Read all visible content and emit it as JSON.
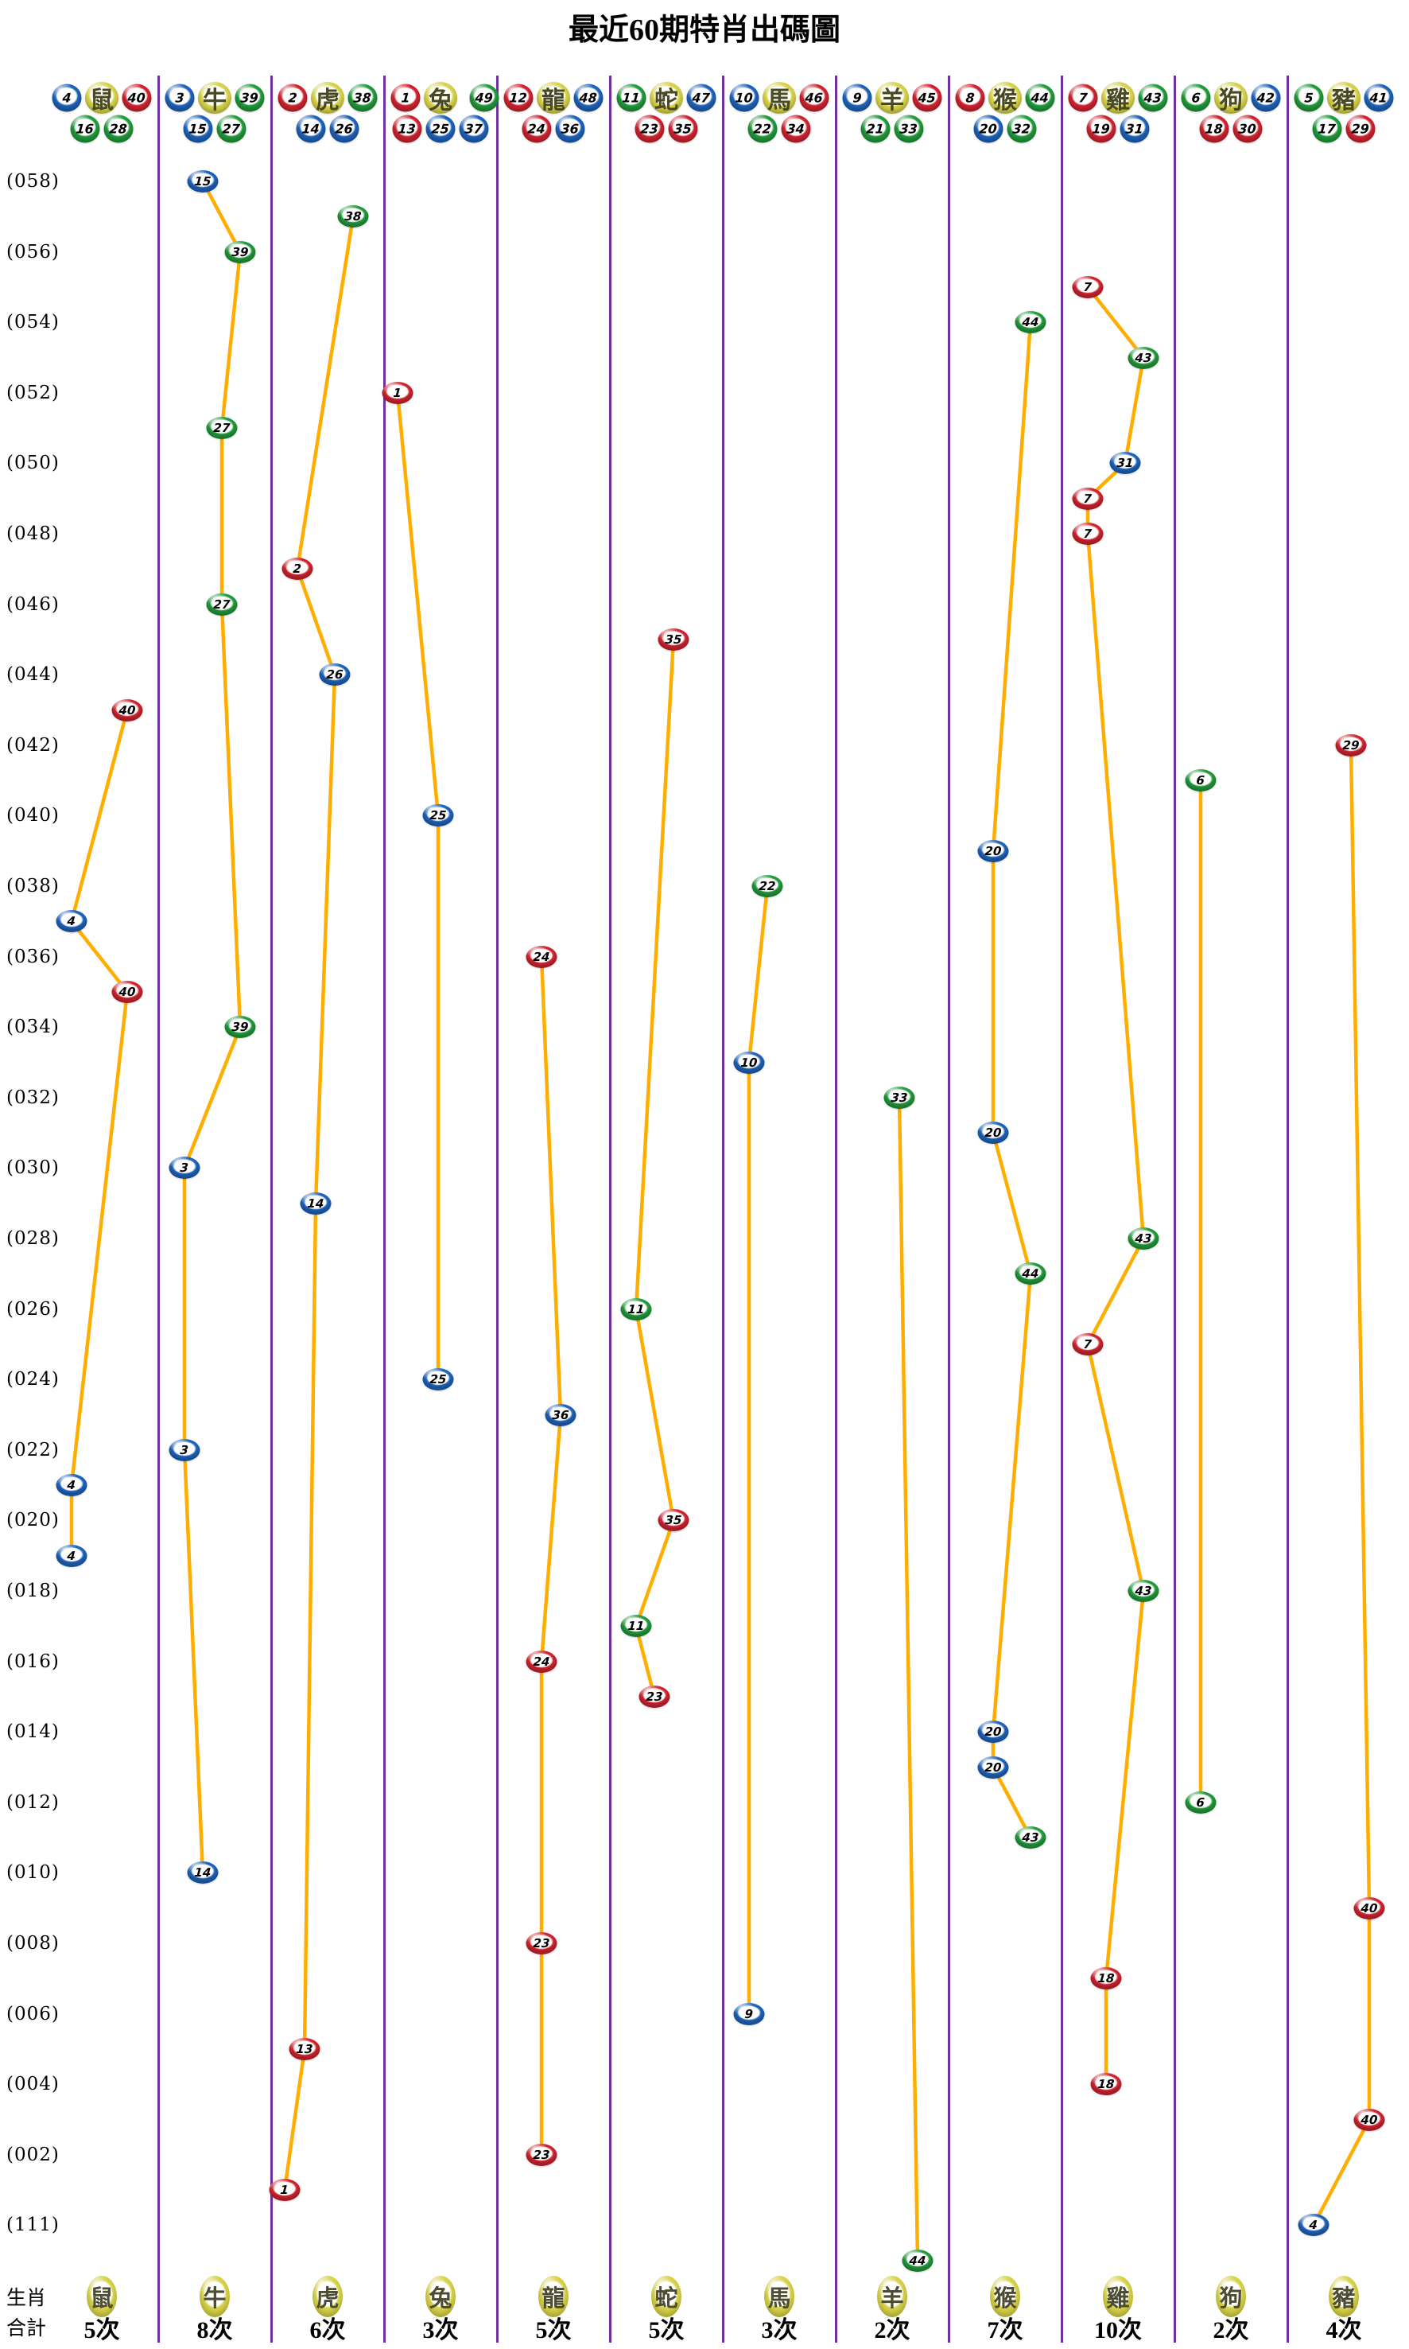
{
  "title": "最近60期特肖出碼圖",
  "legend": {
    "zodiac_row_label": "生肖",
    "total_row_label": "合計"
  },
  "colors": {
    "red_ball": "#d2232f",
    "blue_ball": "#1e63bc",
    "green_ball": "#219b3b",
    "zodiac_yellow": "#d8d348",
    "line_orange": "#ffae00",
    "separator_purple": "#7030a0"
  },
  "ball_color_groups": {
    "red": [
      1,
      2,
      7,
      8,
      12,
      13,
      18,
      19,
      23,
      24,
      29,
      30,
      34,
      35,
      40,
      45,
      46
    ],
    "blue": [
      3,
      4,
      9,
      10,
      14,
      15,
      20,
      25,
      26,
      31,
      36,
      37,
      41,
      42,
      47,
      48
    ],
    "green": [
      5,
      6,
      11,
      16,
      17,
      21,
      22,
      27,
      28,
      32,
      33,
      38,
      39,
      43,
      44,
      49
    ]
  },
  "chart_data": {
    "type": "line",
    "orientation": "columns are zodiac series, rows are draw periods (top = most recent)",
    "y_axis_labels": [
      "(058)",
      "(056)",
      "(054)",
      "(052)",
      "(050)",
      "(048)",
      "(046)",
      "(044)",
      "(042)",
      "(040)",
      "(038)",
      "(036)",
      "(034)",
      "(032)",
      "(030)",
      "(028)",
      "(026)",
      "(024)",
      "(022)",
      "(020)",
      "(018)",
      "(016)",
      "(014)",
      "(012)",
      "(010)",
      "(008)",
      "(006)",
      "(004)",
      "(002)",
      "(111)"
    ],
    "y_label_row_step": 2,
    "rows_total": 60,
    "columns": [
      {
        "zodiac": "鼠",
        "count": "5次",
        "header": {
          "top": [
            4,
            40
          ],
          "bottom": [
            16,
            28
          ]
        },
        "points": [
          {
            "num": 40,
            "row": 15,
            "xo": 103
          },
          {
            "num": 4,
            "row": 21,
            "xo": 33
          },
          {
            "num": 40,
            "row": 23,
            "xo": 103
          },
          {
            "num": 4,
            "row": 37,
            "xo": 33
          },
          {
            "num": 4,
            "row": 39,
            "xo": 33
          }
        ]
      },
      {
        "zodiac": "牛",
        "count": "8次",
        "header": {
          "top": [
            3,
            39
          ],
          "bottom": [
            15,
            27
          ]
        },
        "points": [
          {
            "num": 15,
            "row": 0,
            "xo": 56
          },
          {
            "num": 39,
            "row": 2,
            "xo": 103
          },
          {
            "num": 27,
            "row": 7,
            "xo": 80
          },
          {
            "num": 27,
            "row": 12,
            "xo": 80
          },
          {
            "num": 39,
            "row": 24,
            "xo": 103
          },
          {
            "num": 3,
            "row": 28,
            "xo": 33
          },
          {
            "num": 3,
            "row": 36,
            "xo": 33
          },
          {
            "num": 14,
            "row": 48,
            "xo": 56
          }
        ]
      },
      {
        "zodiac": "虎",
        "count": "6次",
        "header": {
          "top": [
            2,
            38
          ],
          "bottom": [
            14,
            26
          ]
        },
        "points": [
          {
            "num": 38,
            "row": 1,
            "xo": 103
          },
          {
            "num": 2,
            "row": 11,
            "xo": 33
          },
          {
            "num": 26,
            "row": 14,
            "xo": 80
          },
          {
            "num": 14,
            "row": 29,
            "xo": 56
          },
          {
            "num": 13,
            "row": 53,
            "xo": 42
          },
          {
            "num": 1,
            "row": 57,
            "xo": 17
          }
        ]
      },
      {
        "zodiac": "兔",
        "count": "3次",
        "header": {
          "top": [
            1,
            49
          ],
          "bottom": [
            13,
            25,
            37
          ]
        },
        "points": [
          {
            "num": 1,
            "row": 6,
            "xo": 17
          },
          {
            "num": 25,
            "row": 18,
            "xo": 68
          },
          {
            "num": 25,
            "row": 34,
            "xo": 68
          }
        ]
      },
      {
        "zodiac": "龍",
        "count": "5次",
        "header": {
          "top": [
            12,
            48
          ],
          "bottom": [
            24,
            36
          ]
        },
        "points": [
          {
            "num": 24,
            "row": 22,
            "xo": 56
          },
          {
            "num": 36,
            "row": 35,
            "xo": 80
          },
          {
            "num": 24,
            "row": 42,
            "xo": 56
          },
          {
            "num": 23,
            "row": 50,
            "xo": 56
          },
          {
            "num": 23,
            "row": 56,
            "xo": 56
          }
        ]
      },
      {
        "zodiac": "蛇",
        "count": "5次",
        "header": {
          "top": [
            11,
            47
          ],
          "bottom": [
            23,
            35
          ]
        },
        "points": [
          {
            "num": 35,
            "row": 13,
            "xo": 80
          },
          {
            "num": 11,
            "row": 32,
            "xo": 33
          },
          {
            "num": 35,
            "row": 38,
            "xo": 80
          },
          {
            "num": 11,
            "row": 41,
            "xo": 33
          },
          {
            "num": 23,
            "row": 43,
            "xo": 56
          }
        ]
      },
      {
        "zodiac": "馬",
        "count": "3次",
        "header": {
          "top": [
            10,
            46
          ],
          "bottom": [
            22,
            34
          ]
        },
        "points": [
          {
            "num": 22,
            "row": 20,
            "xo": 56
          },
          {
            "num": 10,
            "row": 25,
            "xo": 33
          },
          {
            "num": 9,
            "row": 52,
            "xo": 33
          }
        ]
      },
      {
        "zodiac": "羊",
        "count": "2次",
        "header": {
          "top": [
            9,
            45
          ],
          "bottom": [
            21,
            33
          ]
        },
        "points": [
          {
            "num": 33,
            "row": 26,
            "xo": 80
          },
          {
            "num": 44,
            "row": 59,
            "xo": 103
          }
        ]
      },
      {
        "zodiac": "猴",
        "count": "7次",
        "header": {
          "top": [
            8,
            44
          ],
          "bottom": [
            20,
            32
          ]
        },
        "points": [
          {
            "num": 44,
            "row": 4,
            "xo": 103
          },
          {
            "num": 20,
            "row": 19,
            "xo": 56
          },
          {
            "num": 20,
            "row": 27,
            "xo": 56
          },
          {
            "num": 44,
            "row": 31,
            "xo": 103
          },
          {
            "num": 20,
            "row": 44,
            "xo": 56
          },
          {
            "num": 20,
            "row": 45,
            "xo": 56
          },
          {
            "num": 43,
            "row": 47,
            "xo": 103
          }
        ]
      },
      {
        "zodiac": "雞",
        "count": "10次",
        "header": {
          "top": [
            7,
            43
          ],
          "bottom": [
            19,
            31
          ]
        },
        "points": [
          {
            "num": 7,
            "row": 3,
            "xo": 33
          },
          {
            "num": 43,
            "row": 5,
            "xo": 103
          },
          {
            "num": 31,
            "row": 8,
            "xo": 80
          },
          {
            "num": 7,
            "row": 9,
            "xo": 33
          },
          {
            "num": 7,
            "row": 10,
            "xo": 33
          },
          {
            "num": 43,
            "row": 30,
            "xo": 103
          },
          {
            "num": 7,
            "row": 33,
            "xo": 33
          },
          {
            "num": 43,
            "row": 40,
            "xo": 103
          },
          {
            "num": 18,
            "row": 51,
            "xo": 56
          },
          {
            "num": 18,
            "row": 54,
            "xo": 56
          }
        ]
      },
      {
        "zodiac": "狗",
        "count": "2次",
        "header": {
          "top": [
            6,
            42
          ],
          "bottom": [
            18,
            30
          ]
        },
        "points": [
          {
            "num": 6,
            "row": 17,
            "xo": 33
          },
          {
            "num": 6,
            "row": 46,
            "xo": 33
          }
        ]
      },
      {
        "zodiac": "豬",
        "count": "4次",
        "header": {
          "top": [
            5,
            41
          ],
          "bottom": [
            17,
            29
          ]
        },
        "points": [
          {
            "num": 29,
            "row": 16,
            "xo": 80
          },
          {
            "num": 40,
            "row": 49,
            "xo": 103
          },
          {
            "num": 40,
            "row": 55,
            "xo": 103
          },
          {
            "num": 4,
            "row": 58,
            "xo": 33
          }
        ]
      }
    ]
  }
}
